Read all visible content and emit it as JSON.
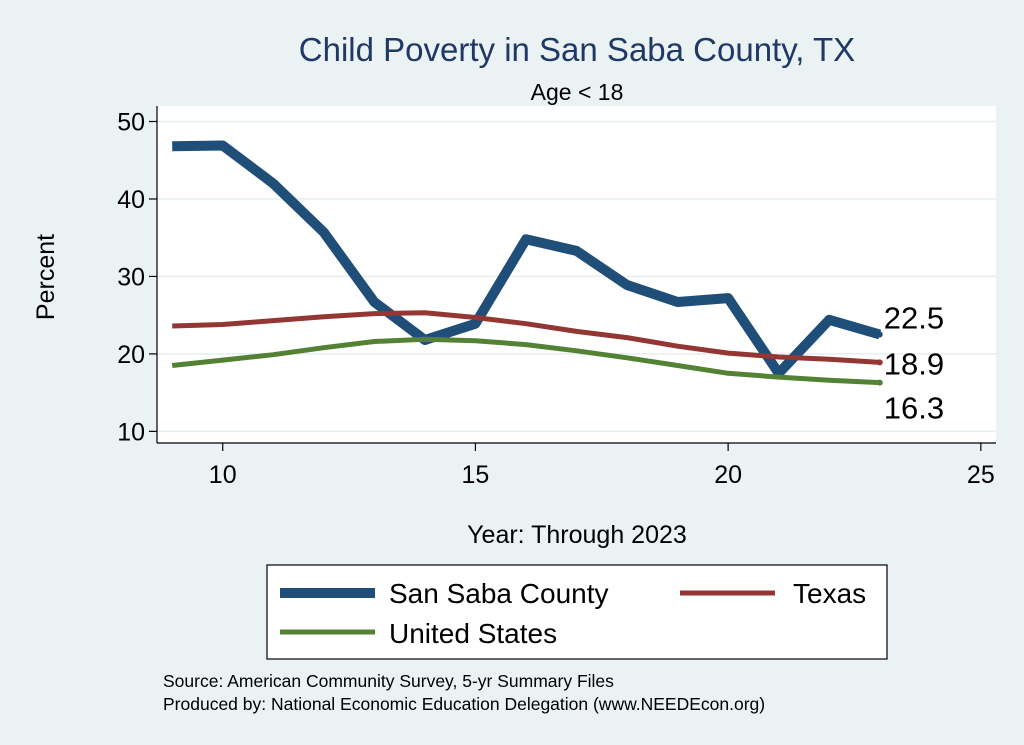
{
  "chart_data": {
    "type": "line",
    "title": "Child Poverty in San Saba County, TX",
    "subtitle": "Age < 18",
    "xlabel": "Year: Through 2023",
    "ylabel": "Percent",
    "xlim": [
      8.7,
      25.3
    ],
    "ylim": [
      8.5,
      52
    ],
    "xticks": [
      10,
      15,
      20,
      25
    ],
    "yticks": [
      10,
      20,
      30,
      40,
      50
    ],
    "grid": true,
    "legend_position": "bottom",
    "x": [
      9,
      10,
      11,
      12,
      13,
      14,
      15,
      16,
      17,
      18,
      19,
      20,
      21,
      22,
      23
    ],
    "series": [
      {
        "name": "San Saba County",
        "color": "#1f4e79",
        "values": [
          46.8,
          46.9,
          42.0,
          35.7,
          26.7,
          21.8,
          23.9,
          34.8,
          33.3,
          28.9,
          26.7,
          27.2,
          17.5,
          24.4,
          22.5
        ],
        "end_label": "22.5"
      },
      {
        "name": "Texas",
        "color": "#943634",
        "values": [
          23.6,
          23.8,
          24.3,
          24.8,
          25.2,
          25.3,
          24.7,
          23.9,
          22.9,
          22.1,
          21.0,
          20.1,
          19.6,
          19.3,
          18.9
        ],
        "end_label": "18.9"
      },
      {
        "name": "United States",
        "color": "#548235",
        "values": [
          18.5,
          19.2,
          19.9,
          20.8,
          21.6,
          21.9,
          21.7,
          21.2,
          20.4,
          19.5,
          18.5,
          17.5,
          17.0,
          16.6,
          16.3
        ],
        "end_label": "16.3"
      }
    ]
  },
  "notes": {
    "source": "Source: American Community Survey, 5-yr Summary Files",
    "produced_by": "Produced by: National Economic Education Delegation (www.NEEDEcon.org)"
  }
}
